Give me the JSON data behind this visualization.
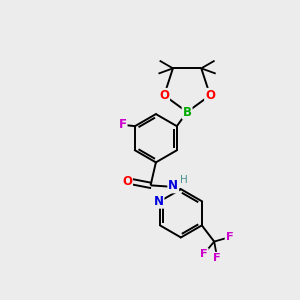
{
  "bg_color": "#ececec",
  "colors": {
    "bond": "#000000",
    "B": "#00aa00",
    "O": "#ff0000",
    "N": "#0000dd",
    "F": "#cc00cc",
    "H_label": "#4a9090",
    "F_single": "#cc00cc"
  },
  "figsize": [
    3.0,
    3.0
  ],
  "dpi": 100
}
